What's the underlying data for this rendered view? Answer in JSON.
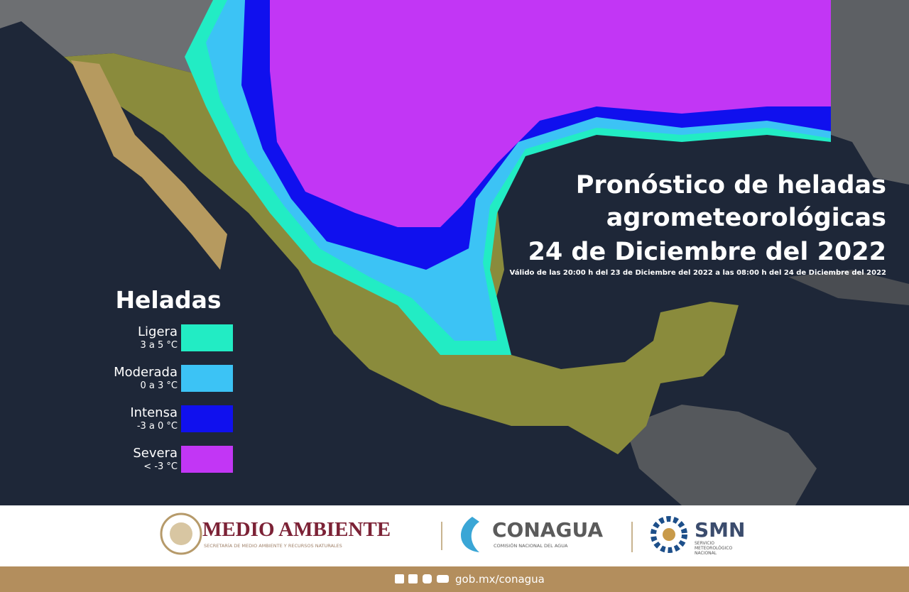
{
  "title": {
    "line1": "Pronóstico de heladas",
    "line2": "agrometeorológicas",
    "line3": "24 de Diciembre del 2022",
    "validity": "Válido de las 20:00 h del 23 de Diciembre del 2022 a las 08:00 h del 24 de Diciembre del 2022"
  },
  "legend": {
    "title": "Heladas",
    "items": [
      {
        "label": "Ligera",
        "range": "3 a 5 °C",
        "color": "#22ecc4"
      },
      {
        "label": "Moderada",
        "range": "0 a 3 °C",
        "color": "#3cc3f5"
      },
      {
        "label": "Intensa",
        "range": "-3 a 0 °C",
        "color": "#1010ee"
      },
      {
        "label": "Severa",
        "range": "< -3 °C",
        "color": "#c236f5"
      }
    ]
  },
  "footer": {
    "logos": [
      {
        "name": "MEDIO AMBIENTE",
        "subtitle": "SECRETARÍA DE MEDIO AMBIENTE Y RECURSOS NATURALES"
      },
      {
        "name": "CONAGUA",
        "subtitle": "COMISIÓN NACIONAL DEL AGUA"
      },
      {
        "name": "SMN",
        "subtitle": "SERVICIO METEOROLÓGICO NACIONAL"
      }
    ],
    "url": "gob.mx/conagua"
  }
}
